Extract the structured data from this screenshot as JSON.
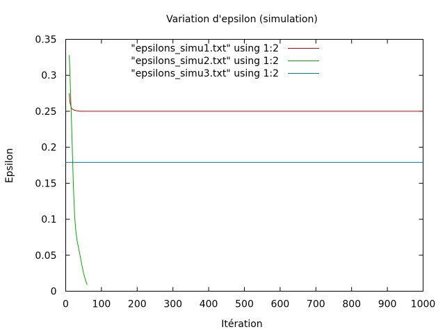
{
  "chart_data": {
    "type": "line",
    "title": "Variation d'epsilon (simulation)",
    "xlabel": "Itération",
    "ylabel": "Epsilon",
    "xlim": [
      0,
      1000
    ],
    "ylim": [
      0,
      0.35
    ],
    "xticks": [
      0,
      100,
      200,
      300,
      400,
      500,
      600,
      700,
      800,
      900,
      1000
    ],
    "yticks": [
      0,
      0.05,
      0.1,
      0.15,
      0.2,
      0.25,
      0.3,
      0.35
    ],
    "ytick_labels": [
      "0",
      "0.05",
      "0.1",
      "0.15",
      "0.2",
      "0.25",
      "0.3",
      "0.35"
    ],
    "grid": false,
    "legend_position": "top",
    "series": [
      {
        "name": "\"epsilons_simu1.txt\" using 1:2",
        "color": "#cc0000",
        "x": [
          10,
          12,
          15,
          18,
          22,
          27,
          33,
          40,
          60,
          100,
          200,
          400,
          600,
          800,
          1000
        ],
        "y": [
          0.275,
          0.262,
          0.256,
          0.253,
          0.252,
          0.251,
          0.2505,
          0.25,
          0.25,
          0.25,
          0.25,
          0.25,
          0.25,
          0.25,
          0.25
        ]
      },
      {
        "name": "\"epsilons_simu2.txt\" using 1:2",
        "color": "#00aa00",
        "x": [
          10,
          12,
          14,
          16,
          18,
          20,
          22,
          25,
          28,
          32,
          36,
          40,
          45,
          50,
          55,
          60
        ],
        "y": [
          0.328,
          0.3,
          0.27,
          0.24,
          0.205,
          0.17,
          0.14,
          0.105,
          0.085,
          0.07,
          0.06,
          0.05,
          0.037,
          0.025,
          0.016,
          0.009
        ]
      },
      {
        "name": "\"epsilons_simu3.txt\" using 1:2",
        "color": "#0077bb",
        "x": [
          0,
          1000
        ],
        "y": [
          0.179,
          0.179
        ]
      }
    ]
  }
}
